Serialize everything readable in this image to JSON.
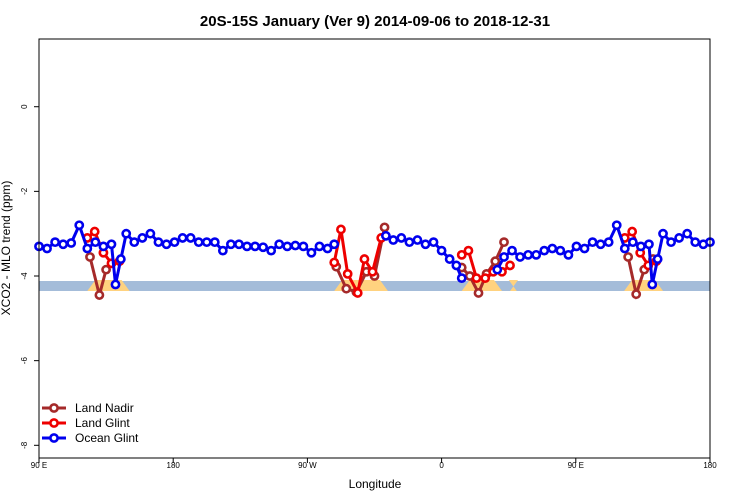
{
  "chart_data": {
    "type": "line",
    "title": "20S-15S January (Ver 9)   2014-09-06 to 2018-12-31",
    "xlabel": "Longitude",
    "ylabel": "XCO2 - MLO trend (ppm)",
    "xlim": [
      0,
      1
    ],
    "ylim": [
      -8.3,
      1.6
    ],
    "x_ticks": [
      {
        "pos": 0.0,
        "label": "90 E"
      },
      {
        "pos": 0.2,
        "label": "180"
      },
      {
        "pos": 0.4,
        "label": "90 W"
      },
      {
        "pos": 0.6,
        "label": "0"
      },
      {
        "pos": 0.8,
        "label": "90 E"
      },
      {
        "pos": 1.0,
        "label": "180"
      }
    ],
    "y_ticks": [
      0,
      -2,
      -4,
      -6,
      -8
    ],
    "grid": false,
    "legend_position": "bottom-left",
    "background_colors": {
      "ocean": "#a4bcd9",
      "land": "#ffd27f"
    },
    "land_segments": [
      [
        0.072,
        0.135
      ],
      [
        0.44,
        0.52
      ],
      [
        0.63,
        0.69
      ],
      [
        0.702,
        0.712
      ],
      [
        0.872,
        0.93
      ]
    ],
    "series": [
      {
        "name": "Land Nadir",
        "color": "#a52a2a",
        "segments": [
          [
            [
              0.076,
              -3.55
            ],
            [
              0.09,
              -4.45
            ],
            [
              0.1,
              -3.85
            ]
          ],
          [
            [
              0.443,
              -3.78
            ],
            [
              0.458,
              -4.3
            ],
            [
              0.473,
              -4.38
            ],
            [
              0.488,
              -3.9
            ],
            [
              0.5,
              -4.0
            ],
            [
              0.515,
              -2.85
            ]
          ],
          [
            [
              0.63,
              -3.8
            ],
            [
              0.642,
              -4.0
            ],
            [
              0.655,
              -4.4
            ],
            [
              0.667,
              -3.95
            ],
            [
              0.68,
              -3.65
            ],
            [
              0.693,
              -3.2
            ]
          ],
          [
            [
              0.878,
              -3.55
            ],
            [
              0.89,
              -4.43
            ],
            [
              0.902,
              -3.85
            ],
            [
              0.915,
              -3.6
            ]
          ]
        ]
      },
      {
        "name": "Land Glint",
        "color": "#ee0000",
        "segments": [
          [
            [
              0.072,
              -3.1
            ],
            [
              0.083,
              -2.95
            ],
            [
              0.096,
              -3.45
            ],
            [
              0.108,
              -3.7
            ],
            [
              0.12,
              -3.65
            ]
          ],
          [
            [
              0.44,
              -3.68
            ],
            [
              0.45,
              -2.9
            ],
            [
              0.46,
              -3.95
            ],
            [
              0.475,
              -4.4
            ],
            [
              0.485,
              -3.6
            ],
            [
              0.497,
              -3.9
            ],
            [
              0.51,
              -3.1
            ]
          ],
          [
            [
              0.63,
              -3.5
            ],
            [
              0.64,
              -3.4
            ],
            [
              0.652,
              -4.05
            ],
            [
              0.665,
              -4.05
            ],
            [
              0.677,
              -3.9
            ],
            [
              0.69,
              -3.9
            ],
            [
              0.702,
              -3.75
            ]
          ],
          [
            [
              0.873,
              -3.1
            ],
            [
              0.884,
              -2.95
            ],
            [
              0.896,
              -3.45
            ],
            [
              0.908,
              -3.75
            ],
            [
              0.92,
              -3.65
            ]
          ]
        ]
      },
      {
        "name": "Ocean Glint",
        "color": "#0000ee",
        "segments": [
          [
            [
              0.0,
              -3.3
            ],
            [
              0.012,
              -3.35
            ],
            [
              0.024,
              -3.2
            ],
            [
              0.036,
              -3.25
            ],
            [
              0.048,
              -3.22
            ],
            [
              0.06,
              -2.8
            ],
            [
              0.072,
              -3.35
            ],
            [
              0.084,
              -3.2
            ],
            [
              0.096,
              -3.3
            ],
            [
              0.108,
              -3.25
            ],
            [
              0.114,
              -4.2
            ],
            [
              0.122,
              -3.6
            ],
            [
              0.13,
              -3.0
            ],
            [
              0.142,
              -3.2
            ],
            [
              0.154,
              -3.1
            ],
            [
              0.166,
              -3.0
            ],
            [
              0.178,
              -3.2
            ],
            [
              0.19,
              -3.25
            ],
            [
              0.202,
              -3.2
            ],
            [
              0.214,
              -3.1
            ],
            [
              0.226,
              -3.1
            ],
            [
              0.238,
              -3.2
            ],
            [
              0.25,
              -3.2
            ],
            [
              0.262,
              -3.2
            ],
            [
              0.274,
              -3.4
            ],
            [
              0.286,
              -3.25
            ],
            [
              0.298,
              -3.25
            ],
            [
              0.31,
              -3.3
            ],
            [
              0.322,
              -3.3
            ],
            [
              0.334,
              -3.32
            ],
            [
              0.346,
              -3.4
            ],
            [
              0.358,
              -3.25
            ],
            [
              0.37,
              -3.3
            ],
            [
              0.382,
              -3.28
            ],
            [
              0.394,
              -3.3
            ],
            [
              0.406,
              -3.45
            ],
            [
              0.418,
              -3.3
            ],
            [
              0.43,
              -3.35
            ],
            [
              0.44,
              -3.25
            ]
          ],
          [
            [
              0.517,
              -3.05
            ],
            [
              0.528,
              -3.15
            ],
            [
              0.54,
              -3.1
            ],
            [
              0.552,
              -3.2
            ],
            [
              0.564,
              -3.15
            ],
            [
              0.576,
              -3.25
            ],
            [
              0.588,
              -3.2
            ],
            [
              0.6,
              -3.4
            ],
            [
              0.612,
              -3.6
            ],
            [
              0.622,
              -3.75
            ],
            [
              0.63,
              -4.05
            ]
          ],
          [
            [
              0.683,
              -3.85
            ],
            [
              0.693,
              -3.55
            ],
            [
              0.705,
              -3.4
            ],
            [
              0.717,
              -3.55
            ],
            [
              0.729,
              -3.5
            ],
            [
              0.741,
              -3.5
            ],
            [
              0.753,
              -3.4
            ],
            [
              0.765,
              -3.35
            ],
            [
              0.777,
              -3.4
            ],
            [
              0.789,
              -3.5
            ],
            [
              0.801,
              -3.3
            ],
            [
              0.813,
              -3.35
            ],
            [
              0.825,
              -3.2
            ],
            [
              0.837,
              -3.25
            ],
            [
              0.849,
              -3.2
            ],
            [
              0.861,
              -2.8
            ],
            [
              0.873,
              -3.35
            ],
            [
              0.885,
              -3.2
            ],
            [
              0.897,
              -3.3
            ],
            [
              0.909,
              -3.25
            ],
            [
              0.914,
              -4.2
            ],
            [
              0.922,
              -3.6
            ],
            [
              0.93,
              -3.0
            ],
            [
              0.942,
              -3.2
            ],
            [
              0.954,
              -3.1
            ],
            [
              0.966,
              -3.0
            ],
            [
              0.978,
              -3.2
            ],
            [
              0.99,
              -3.25
            ],
            [
              1.0,
              -3.2
            ]
          ]
        ]
      }
    ]
  }
}
